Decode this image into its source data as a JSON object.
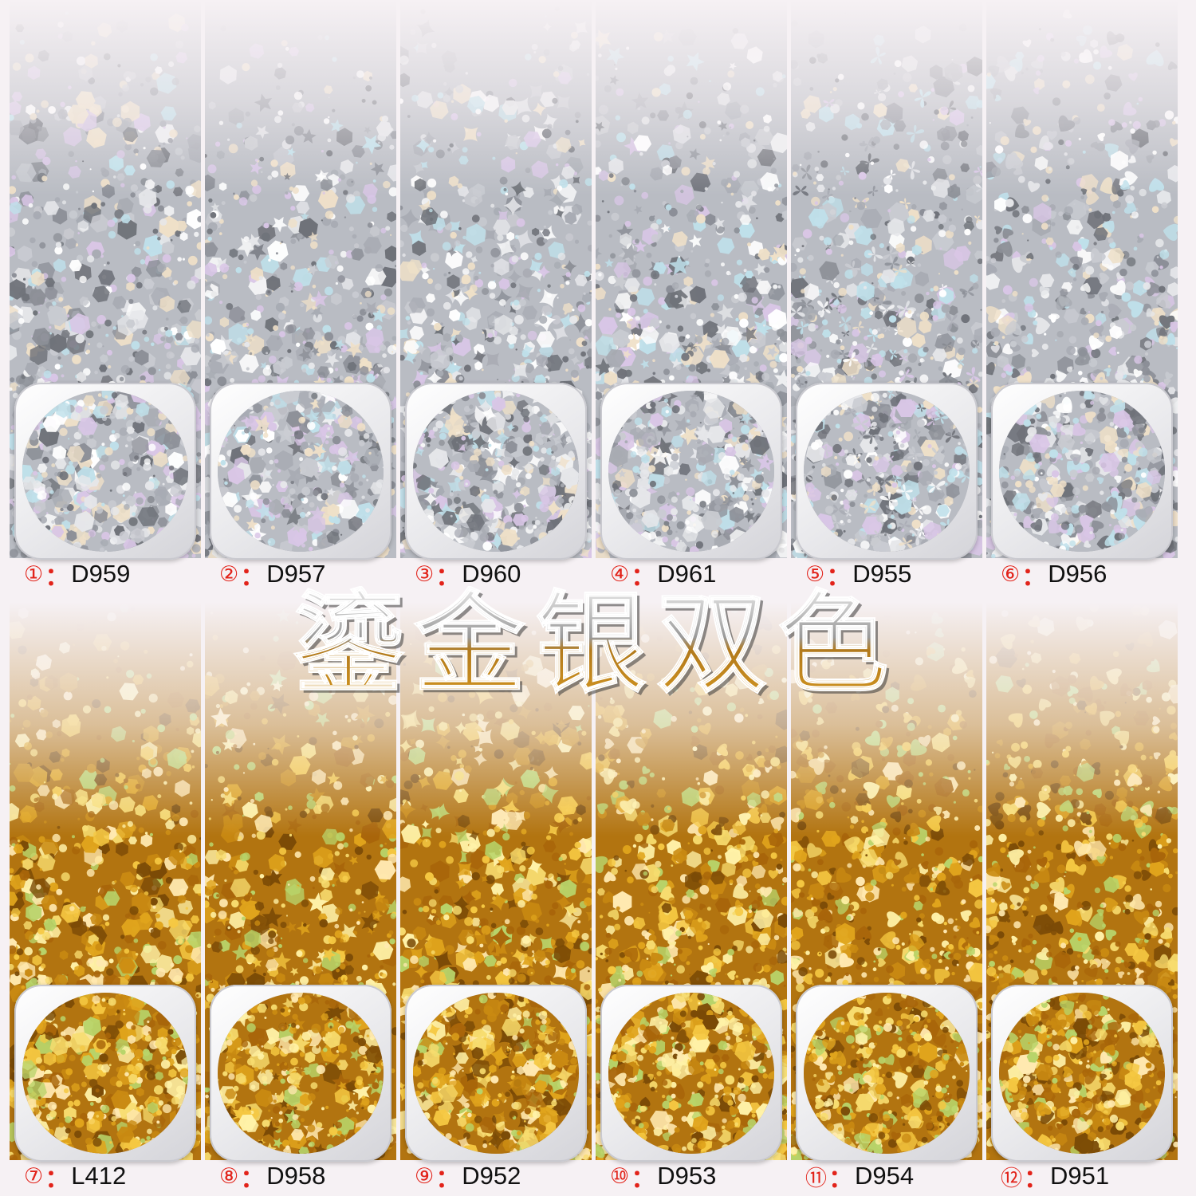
{
  "headline": "鎏金银双色",
  "colors": {
    "silver_base": "#c9cbd1",
    "gold_base": "#c98a12",
    "label_accent": "#e2231a"
  },
  "products": [
    {
      "num": "①",
      "sep": "：",
      "code": "D959",
      "tone": "silver",
      "shapes": "dots"
    },
    {
      "num": "②",
      "sep": "：",
      "code": "D957",
      "tone": "silver",
      "shapes": "moons-stars"
    },
    {
      "num": "③",
      "sep": "：",
      "code": "D960",
      "tone": "silver",
      "shapes": "sparkles"
    },
    {
      "num": "④",
      "sep": "：",
      "code": "D961",
      "tone": "silver",
      "shapes": "stars"
    },
    {
      "num": "⑤",
      "sep": "：",
      "code": "D955",
      "tone": "silver",
      "shapes": "butterflies"
    },
    {
      "num": "⑥",
      "sep": "：",
      "code": "D956",
      "tone": "silver",
      "shapes": "hearts"
    },
    {
      "num": "⑦",
      "sep": "：",
      "code": "L412",
      "tone": "gold",
      "shapes": "dots"
    },
    {
      "num": "⑧",
      "sep": "：",
      "code": "D958",
      "tone": "gold",
      "shapes": "moons-stars"
    },
    {
      "num": "⑨",
      "sep": "：",
      "code": "D952",
      "tone": "gold",
      "shapes": "sparkles"
    },
    {
      "num": "⑩",
      "sep": "：",
      "code": "D953",
      "tone": "gold",
      "shapes": "hexagons"
    },
    {
      "num": "⑪",
      "sep": "：",
      "code": "D954",
      "tone": "gold",
      "shapes": "hearts"
    },
    {
      "num": "⑫",
      "sep": "：",
      "code": "D951",
      "tone": "gold",
      "shapes": "hearts"
    }
  ]
}
